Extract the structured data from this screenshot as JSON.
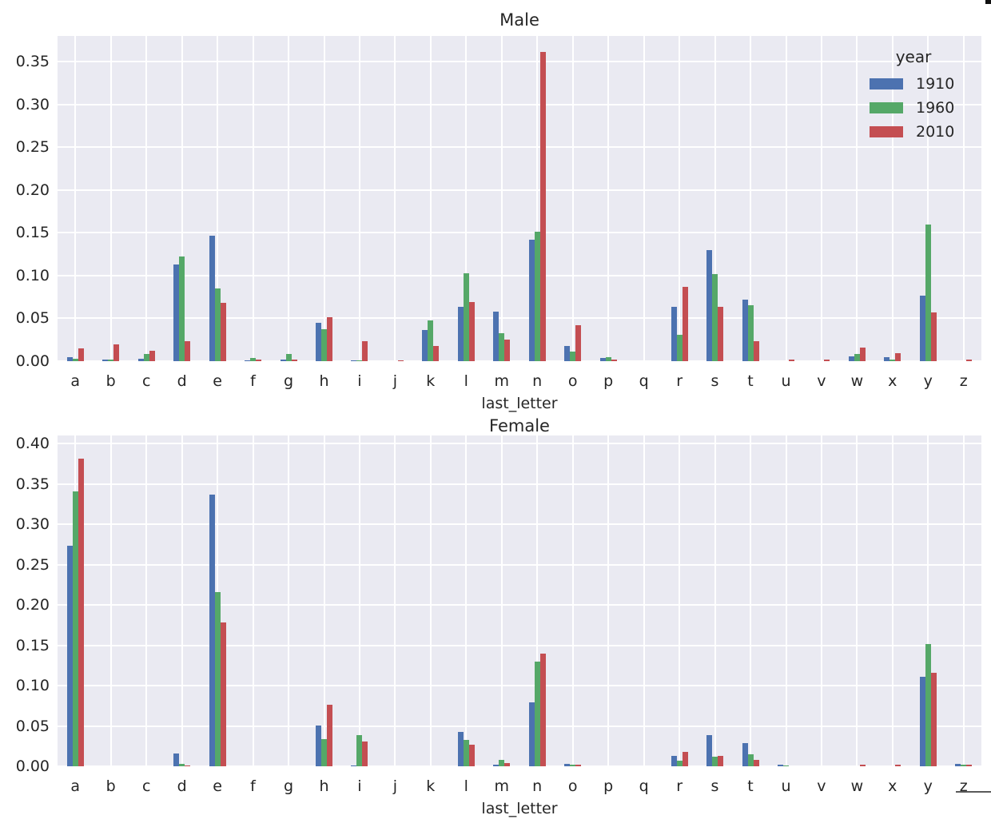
{
  "chart_data": [
    {
      "type": "bar",
      "title": "Male",
      "xlabel": "last_letter",
      "ylabel": "",
      "ylim": [
        0,
        0.38
      ],
      "yticks": [
        "0.00",
        "0.05",
        "0.10",
        "0.15",
        "0.20",
        "0.25",
        "0.30",
        "0.35"
      ],
      "ytick_values": [
        0.0,
        0.05,
        0.1,
        0.15,
        0.2,
        0.25,
        0.3,
        0.35
      ],
      "grid": true,
      "legend_title": "year",
      "legend_position": "upper right",
      "categories": [
        "a",
        "b",
        "c",
        "d",
        "e",
        "f",
        "g",
        "h",
        "i",
        "j",
        "k",
        "l",
        "m",
        "n",
        "o",
        "p",
        "q",
        "r",
        "s",
        "t",
        "u",
        "v",
        "w",
        "x",
        "y",
        "z"
      ],
      "series": [
        {
          "name": "1910",
          "color": "#4c72b0",
          "values": [
            0.005,
            0.002,
            0.003,
            0.113,
            0.147,
            0.001,
            0.002,
            0.045,
            0.001,
            0.0,
            0.036,
            0.064,
            0.058,
            0.142,
            0.018,
            0.004,
            0.0,
            0.064,
            0.13,
            0.072,
            0.0,
            0.0,
            0.006,
            0.005,
            0.077,
            0.0
          ]
        },
        {
          "name": "1960",
          "color": "#55a868",
          "values": [
            0.003,
            0.002,
            0.008,
            0.122,
            0.085,
            0.004,
            0.008,
            0.037,
            0.001,
            0.0,
            0.048,
            0.103,
            0.033,
            0.151,
            0.011,
            0.005,
            0.0,
            0.031,
            0.102,
            0.065,
            0.0,
            0.0,
            0.008,
            0.002,
            0.16,
            0.0
          ]
        },
        {
          "name": "2010",
          "color": "#c44e52",
          "values": [
            0.015,
            0.02,
            0.012,
            0.023,
            0.068,
            0.002,
            0.002,
            0.051,
            0.023,
            0.001,
            0.018,
            0.069,
            0.025,
            0.361,
            0.042,
            0.002,
            0.0,
            0.087,
            0.064,
            0.023,
            0.002,
            0.002,
            0.016,
            0.009,
            0.057,
            0.002
          ]
        }
      ]
    },
    {
      "type": "bar",
      "title": "Female",
      "xlabel": "last_letter",
      "ylabel": "",
      "ylim": [
        0,
        0.41
      ],
      "yticks": [
        "0.00",
        "0.05",
        "0.10",
        "0.15",
        "0.20",
        "0.25",
        "0.30",
        "0.35",
        "0.40"
      ],
      "ytick_values": [
        0.0,
        0.05,
        0.1,
        0.15,
        0.2,
        0.25,
        0.3,
        0.35,
        0.4
      ],
      "grid": true,
      "legend_title": null,
      "legend_position": null,
      "categories": [
        "a",
        "b",
        "c",
        "d",
        "e",
        "f",
        "g",
        "h",
        "i",
        "j",
        "k",
        "l",
        "m",
        "n",
        "o",
        "p",
        "q",
        "r",
        "s",
        "t",
        "u",
        "v",
        "w",
        "x",
        "y",
        "z"
      ],
      "series": [
        {
          "name": "1910",
          "color": "#4c72b0",
          "values": [
            0.273,
            0.0,
            0.0,
            0.016,
            0.337,
            0.0,
            0.0,
            0.051,
            0.001,
            0.0,
            0.0,
            0.043,
            0.002,
            0.079,
            0.003,
            0.0,
            0.0,
            0.013,
            0.039,
            0.029,
            0.002,
            0.0,
            0.0,
            0.0,
            0.111,
            0.003
          ]
        },
        {
          "name": "1960",
          "color": "#55a868",
          "values": [
            0.341,
            0.0,
            0.0,
            0.003,
            0.216,
            0.0,
            0.0,
            0.034,
            0.039,
            0.0,
            0.0,
            0.033,
            0.008,
            0.13,
            0.002,
            0.0,
            0.0,
            0.007,
            0.012,
            0.015,
            0.001,
            0.0,
            0.0,
            0.0,
            0.152,
            0.002
          ]
        },
        {
          "name": "2010",
          "color": "#c44e52",
          "values": [
            0.381,
            0.0,
            0.0,
            0.001,
            0.178,
            0.0,
            0.0,
            0.076,
            0.031,
            0.0,
            0.0,
            0.027,
            0.004,
            0.14,
            0.002,
            0.0,
            0.0,
            0.018,
            0.013,
            0.008,
            0.0,
            0.0,
            0.002,
            0.002,
            0.116,
            0.002
          ]
        }
      ]
    }
  ],
  "style": {
    "plot_background": "#eaeaf2",
    "grid_color": "#ffffff",
    "text_color": "#262626"
  }
}
